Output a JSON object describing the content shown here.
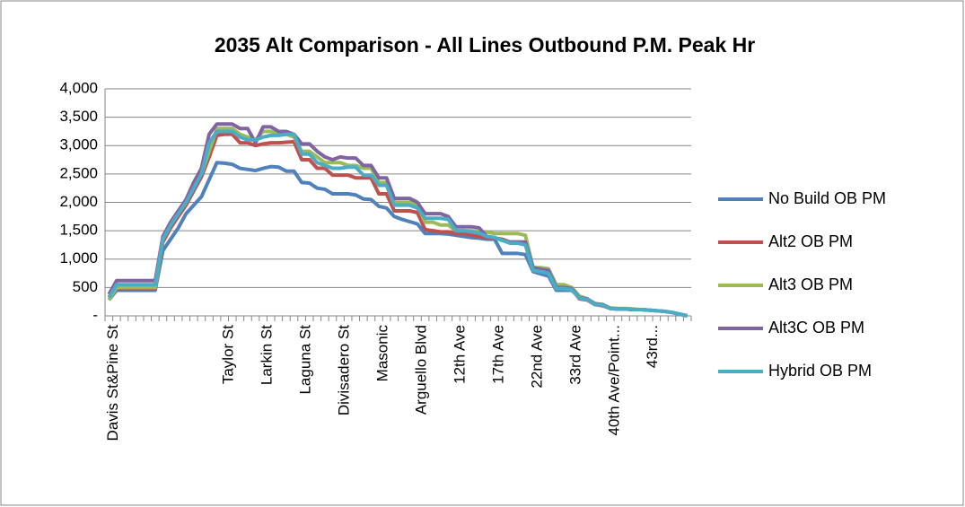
{
  "chart_data": {
    "type": "line",
    "title": "2035 Alt Comparison - All Lines Outbound P.M. Peak Hr",
    "categories": [
      "Davis St&Pine St",
      null,
      null,
      null,
      null,
      null,
      null,
      null,
      null,
      null,
      null,
      null,
      null,
      null,
      null,
      "Taylor St",
      null,
      null,
      null,
      null,
      "Larkin St",
      null,
      null,
      null,
      null,
      "Laguna St",
      null,
      null,
      null,
      null,
      "Divisadero St",
      null,
      null,
      null,
      null,
      "Masonic",
      null,
      null,
      null,
      null,
      "Arguello Blvd",
      null,
      null,
      null,
      null,
      "12th Ave",
      null,
      null,
      null,
      null,
      "17th Ave",
      null,
      null,
      null,
      null,
      "22nd Ave",
      null,
      null,
      null,
      null,
      "33rd Ave",
      null,
      null,
      null,
      null,
      "40th Ave/Point...",
      null,
      null,
      null,
      null,
      "43rd...",
      null,
      null,
      null,
      null,
      null
    ],
    "ylim": [
      0,
      4000
    ],
    "yticks": [
      {
        "value": 0,
        "label": "-"
      },
      500,
      {
        "value": 1000,
        "label": "1,000"
      },
      {
        "value": 1500,
        "label": "1,500"
      },
      {
        "value": 2000,
        "label": "2,000"
      },
      {
        "value": 2500,
        "label": "2,500"
      },
      {
        "value": 3000,
        "label": "3,000"
      },
      {
        "value": 3500,
        "label": "3,500"
      },
      {
        "value": 4000,
        "label": "4,000"
      }
    ],
    "grid": true,
    "legend": "right",
    "series": [
      {
        "name": "No Build OB PM",
        "color": "#4f81bd",
        "values": [
          280,
          450,
          450,
          450,
          450,
          450,
          450,
          1150,
          1350,
          1550,
          1800,
          1950,
          2100,
          2400,
          2700,
          2690,
          2670,
          2600,
          2580,
          2560,
          2600,
          2630,
          2620,
          2550,
          2550,
          2350,
          2340,
          2250,
          2230,
          2150,
          2150,
          2150,
          2130,
          2060,
          2050,
          1930,
          1900,
          1750,
          1700,
          1660,
          1620,
          1450,
          1450,
          1450,
          1440,
          1420,
          1400,
          1380,
          1370,
          1350,
          1350,
          1100,
          1100,
          1100,
          1080,
          780,
          740,
          700,
          450,
          450,
          450,
          330,
          300,
          200,
          200,
          130,
          120,
          120,
          110,
          110,
          100,
          90,
          80,
          60,
          30,
          0
        ]
      },
      {
        "name": "Alt2 OB PM",
        "color": "#c0504d",
        "values": [
          330,
          480,
          480,
          480,
          480,
          480,
          480,
          1300,
          1550,
          1750,
          1950,
          2200,
          2450,
          2800,
          3180,
          3200,
          3200,
          3050,
          3050,
          3000,
          3030,
          3050,
          3050,
          3060,
          3070,
          2750,
          2750,
          2600,
          2600,
          2480,
          2480,
          2480,
          2430,
          2430,
          2430,
          2150,
          2150,
          1850,
          1850,
          1850,
          1820,
          1520,
          1500,
          1480,
          1480,
          1450,
          1450,
          1420,
          1400,
          1380,
          1370,
          1350,
          1300,
          1300,
          1300,
          820,
          800,
          750,
          500,
          500,
          480,
          300,
          280,
          200,
          180,
          130,
          120,
          120,
          110,
          110,
          100,
          90,
          80,
          60,
          30,
          0
        ]
      },
      {
        "name": "Alt3 OB PM",
        "color": "#9bbb59",
        "values": [
          280,
          500,
          500,
          500,
          500,
          500,
          500,
          1350,
          1600,
          1800,
          2000,
          2300,
          2500,
          2900,
          3300,
          3300,
          3300,
          3200,
          3150,
          3100,
          3250,
          3250,
          3200,
          3200,
          3150,
          2900,
          2900,
          2800,
          2700,
          2700,
          2700,
          2650,
          2650,
          2600,
          2600,
          2350,
          2350,
          2000,
          2000,
          2000,
          1950,
          1650,
          1650,
          1600,
          1600,
          1500,
          1500,
          1500,
          1480,
          1480,
          1450,
          1450,
          1450,
          1450,
          1420,
          850,
          850,
          830,
          550,
          550,
          500,
          350,
          300,
          220,
          200,
          140,
          130,
          130,
          120,
          110,
          100,
          90,
          80,
          60,
          30,
          0
        ]
      },
      {
        "name": "Alt3C OB PM",
        "color": "#8064a2",
        "values": [
          380,
          620,
          620,
          620,
          620,
          620,
          620,
          1400,
          1650,
          1850,
          2050,
          2350,
          2600,
          3200,
          3380,
          3380,
          3380,
          3300,
          3300,
          3050,
          3330,
          3330,
          3250,
          3250,
          3200,
          3030,
          3030,
          2900,
          2800,
          2750,
          2800,
          2780,
          2780,
          2650,
          2650,
          2430,
          2430,
          2070,
          2070,
          2070,
          2000,
          1800,
          1800,
          1800,
          1750,
          1570,
          1570,
          1570,
          1550,
          1400,
          1380,
          1330,
          1300,
          1300,
          1300,
          850,
          820,
          800,
          500,
          500,
          480,
          320,
          300,
          210,
          200,
          130,
          120,
          120,
          110,
          110,
          100,
          90,
          80,
          60,
          30,
          0
        ]
      },
      {
        "name": "Hybrid OB PM",
        "color": "#4bacc6",
        "values": [
          320,
          550,
          550,
          550,
          550,
          550,
          550,
          1350,
          1600,
          1800,
          2000,
          2250,
          2500,
          3050,
          3250,
          3250,
          3250,
          3150,
          3100,
          3100,
          3150,
          3180,
          3180,
          3200,
          3200,
          2850,
          2850,
          2700,
          2650,
          2600,
          2600,
          2620,
          2620,
          2480,
          2480,
          2300,
          2300,
          1950,
          1950,
          1950,
          1900,
          1720,
          1720,
          1720,
          1700,
          1500,
          1500,
          1480,
          1460,
          1400,
          1380,
          1330,
          1280,
          1280,
          1250,
          800,
          780,
          750,
          480,
          480,
          460,
          310,
          290,
          200,
          190,
          130,
          120,
          120,
          110,
          110,
          100,
          90,
          80,
          60,
          30,
          0
        ]
      }
    ]
  }
}
